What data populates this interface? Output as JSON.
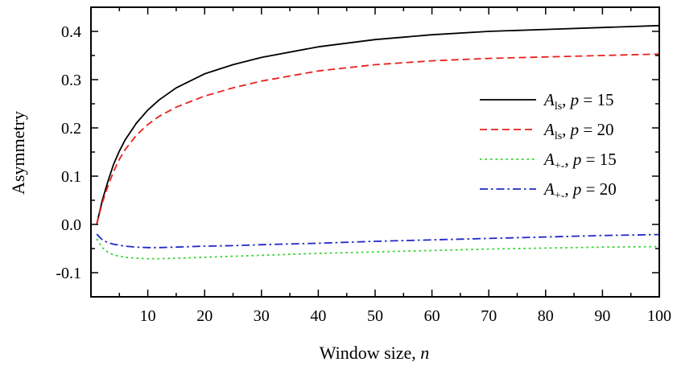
{
  "chart_data": {
    "type": "line",
    "title": "",
    "xlabel": "Window size, ",
    "xlabel_var": "n",
    "ylabel": "Asymmetry",
    "xlim": [
      0,
      100
    ],
    "ylim": [
      -0.15,
      0.45
    ],
    "x_ticks": [
      10,
      20,
      30,
      40,
      50,
      60,
      70,
      80,
      90,
      100
    ],
    "x_tick_labels": [
      "10",
      "20",
      "30",
      "40",
      "50",
      "60",
      "70",
      "80",
      "90",
      "100"
    ],
    "y_ticks": [
      -0.1,
      0.0,
      0.1,
      0.2,
      0.3,
      0.4
    ],
    "y_tick_labels": [
      "-0.1",
      "0.0",
      "0.1",
      "0.2",
      "0.3",
      "0.4"
    ],
    "grid": false,
    "legend_position": "right",
    "series": [
      {
        "name": "A_ls, p = 15",
        "legend": {
          "var": "A",
          "sub": "ls",
          "rest": ", ",
          "p": "p",
          "eq": " = 15"
        },
        "color": "#000000",
        "dash": "solid",
        "x": [
          1,
          2,
          3,
          4,
          5,
          6,
          8,
          10,
          12,
          15,
          20,
          25,
          30,
          40,
          50,
          60,
          70,
          80,
          90,
          100
        ],
        "y": [
          0.0,
          0.05,
          0.09,
          0.125,
          0.152,
          0.175,
          0.21,
          0.237,
          0.258,
          0.283,
          0.312,
          0.331,
          0.346,
          0.368,
          0.383,
          0.393,
          0.4,
          0.404,
          0.408,
          0.412
        ]
      },
      {
        "name": "A_ls, p = 20",
        "legend": {
          "var": "A",
          "sub": "ls",
          "rest": ", ",
          "p": "p",
          "eq": " = 20"
        },
        "color": "#e8211d",
        "dash": "dashed",
        "x": [
          1,
          2,
          3,
          4,
          5,
          6,
          8,
          10,
          12,
          15,
          20,
          25,
          30,
          40,
          50,
          60,
          70,
          80,
          90,
          100
        ],
        "y": [
          0.0,
          0.045,
          0.08,
          0.11,
          0.135,
          0.155,
          0.185,
          0.207,
          0.224,
          0.243,
          0.266,
          0.283,
          0.297,
          0.318,
          0.331,
          0.339,
          0.344,
          0.347,
          0.35,
          0.353
        ]
      },
      {
        "name": "A+-, p = 15",
        "legend": {
          "var": "A",
          "sub": "+-",
          "rest": ", ",
          "p": "p",
          "eq": " = 15"
        },
        "color": "#2ad42a",
        "dash": "dotted",
        "x": [
          1,
          2,
          3,
          4,
          5,
          6,
          8,
          10,
          12,
          15,
          20,
          25,
          30,
          40,
          50,
          60,
          70,
          80,
          90,
          100
        ],
        "y": [
          -0.03,
          -0.048,
          -0.058,
          -0.063,
          -0.066,
          -0.068,
          -0.07,
          -0.071,
          -0.071,
          -0.07,
          -0.068,
          -0.066,
          -0.064,
          -0.06,
          -0.057,
          -0.054,
          -0.051,
          -0.049,
          -0.047,
          -0.046
        ]
      },
      {
        "name": "A+-, p = 20",
        "legend": {
          "var": "A",
          "sub": "+-",
          "rest": ", ",
          "p": "p",
          "eq": " = 20"
        },
        "color": "#1f28c8",
        "dash": "dashdot",
        "x": [
          1,
          2,
          3,
          4,
          5,
          6,
          8,
          10,
          12,
          15,
          20,
          25,
          30,
          40,
          50,
          60,
          70,
          80,
          90,
          100
        ],
        "y": [
          -0.02,
          -0.032,
          -0.038,
          -0.041,
          -0.043,
          -0.045,
          -0.047,
          -0.048,
          -0.048,
          -0.047,
          -0.045,
          -0.044,
          -0.042,
          -0.039,
          -0.035,
          -0.032,
          -0.029,
          -0.026,
          -0.023,
          -0.021
        ]
      }
    ]
  }
}
